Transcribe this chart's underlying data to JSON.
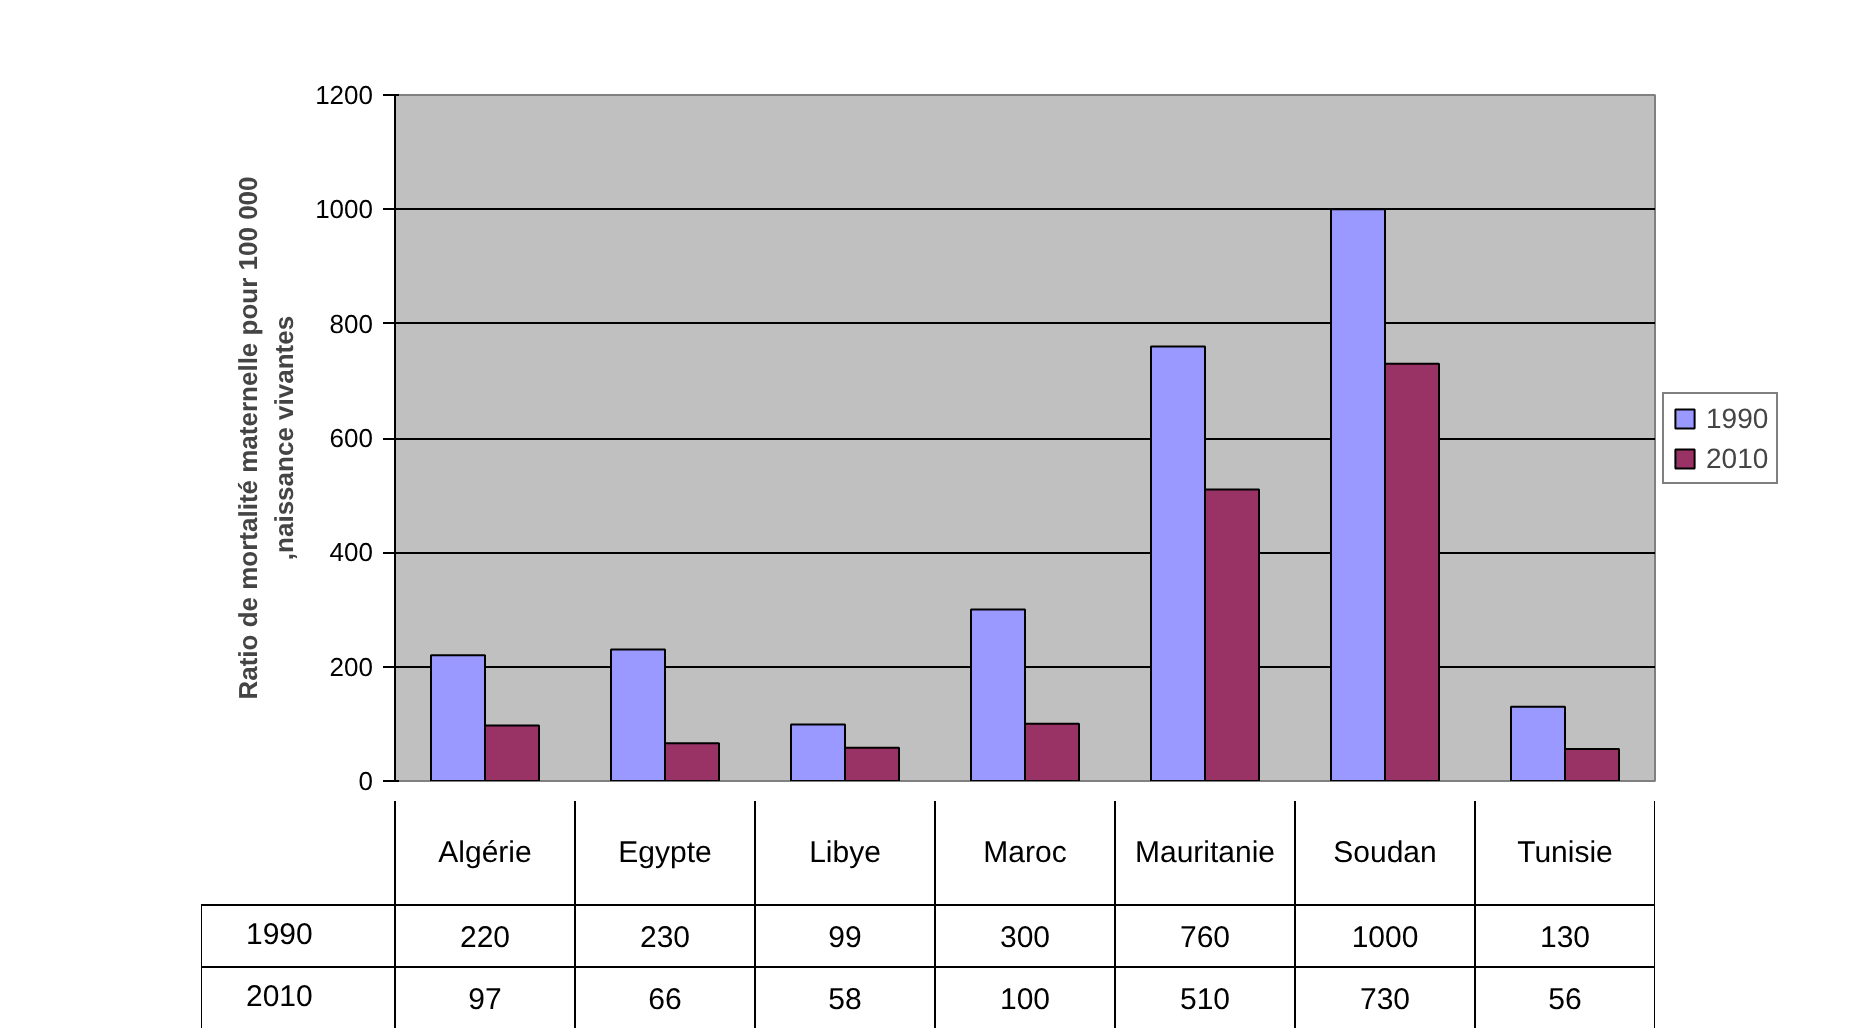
{
  "chart_data": {
    "type": "bar",
    "ylabel": "Ratio de mortalité maternelle pour 100 000 ,naissance vivantes",
    "categories": [
      "Algérie",
      "Egypte",
      "Libye",
      "Maroc",
      "Mauritanie",
      "Soudan",
      "Tunisie"
    ],
    "series": [
      {
        "name": "1990",
        "color": "#9999ff",
        "values": [
          220,
          230,
          99,
          300,
          760,
          1000,
          130
        ]
      },
      {
        "name": "2010",
        "color": "#993366",
        "values": [
          97,
          66,
          58,
          100,
          510,
          730,
          56
        ]
      }
    ],
    "ylim": [
      0,
      1200
    ],
    "yticks": [
      0,
      200,
      400,
      600,
      800,
      1000,
      1200
    ],
    "grid": "y",
    "legend": "right",
    "data_labels": true
  }
}
